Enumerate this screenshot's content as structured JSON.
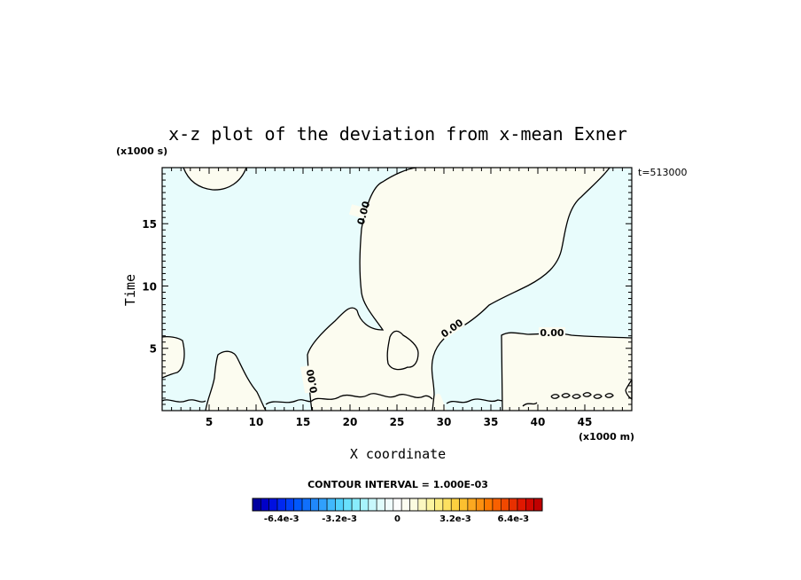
{
  "chart_data": {
    "type": "heatmap",
    "title": "x-z plot of the deviation from x-mean Exner",
    "xlabel": "X coordinate",
    "ylabel": "Time",
    "x_unit": "(x1000 m)",
    "y_unit": "(x1000 s)",
    "time_annotation": "t=513000",
    "xlim": [
      0,
      50
    ],
    "ylim": [
      0,
      19.5
    ],
    "x_ticks": [
      5,
      10,
      15,
      20,
      25,
      30,
      35,
      40,
      45
    ],
    "y_ticks": [
      5,
      10,
      15
    ],
    "contour_interval_text": "CONTOUR INTERVAL = 1.000E-03",
    "contour_labels": [
      "0.00",
      "0.00",
      "0.00",
      "0.00"
    ],
    "regions": [
      {
        "sign": "negative",
        "color": "#e8fcfc"
      },
      {
        "sign": "positive",
        "color": "#fcfcf0"
      }
    ],
    "colorbar": {
      "min": -0.008,
      "max": 0.008,
      "tick_labels": [
        "-6.4e-3",
        "-3.2e-3",
        "0",
        "3.2e-3",
        "6.4e-3"
      ],
      "colors": [
        "#0000a0",
        "#0000c8",
        "#0010e0",
        "#0028f0",
        "#0040f8",
        "#0058fc",
        "#1070fc",
        "#2088fc",
        "#30a0fc",
        "#40b8fc",
        "#50d0fc",
        "#68e0fc",
        "#88ecfc",
        "#a8f4fc",
        "#c8f8fc",
        "#e0fcfc",
        "#f0fcfc",
        "#fcfcfc",
        "#fcfcf0",
        "#fcfce0",
        "#fcf8c0",
        "#fcf4a0",
        "#fcec80",
        "#fce060",
        "#fcd040",
        "#fcc030",
        "#fca820",
        "#fc9010",
        "#fc7800",
        "#f86000",
        "#f04800",
        "#e83000",
        "#e01800",
        "#d00800",
        "#c00000"
      ]
    }
  }
}
